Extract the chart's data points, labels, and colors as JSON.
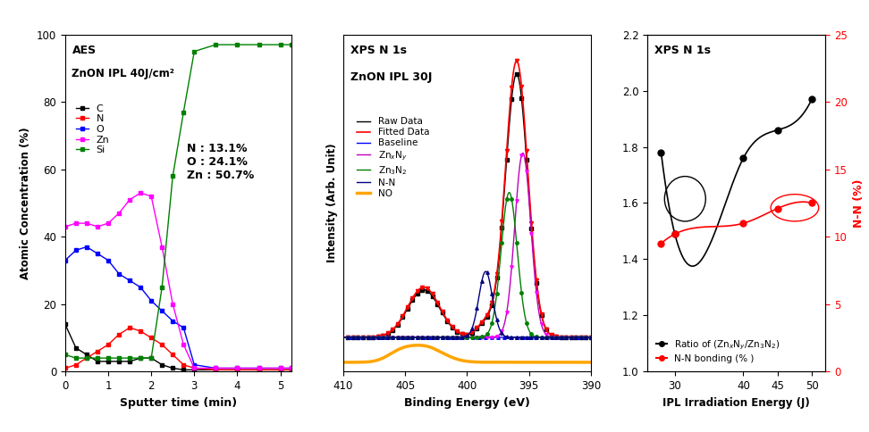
{
  "panel1": {
    "xlabel": "Sputter time (min)",
    "ylabel": "Atomic Concentration (%)",
    "annotation": "N : 13.1%\nO : 24.1%\nZn : 50.7%",
    "inner_title1": "AES",
    "inner_title2": "ZnON IPL 40J/cm²",
    "C": {
      "x": [
        0,
        0.25,
        0.5,
        0.75,
        1.0,
        1.25,
        1.5,
        1.75,
        2.0,
        2.25,
        2.5,
        2.75,
        3.0,
        3.5,
        4.0,
        4.5,
        5.0,
        5.25
      ],
      "y": [
        14,
        7,
        5,
        3,
        3,
        3,
        3,
        4,
        4,
        2,
        1,
        0.5,
        0.5,
        0.5,
        0.5,
        0.5,
        0.5,
        0.5
      ],
      "color": "black",
      "marker": "s"
    },
    "N": {
      "x": [
        0,
        0.25,
        0.5,
        0.75,
        1.0,
        1.25,
        1.5,
        1.75,
        2.0,
        2.25,
        2.5,
        2.75,
        3.0,
        3.5,
        4.0,
        4.5,
        5.0,
        5.25
      ],
      "y": [
        1,
        2,
        4,
        6,
        8,
        11,
        13,
        12,
        10,
        8,
        5,
        2,
        1,
        0.5,
        0.5,
        0.5,
        0.5,
        0.5
      ],
      "color": "red",
      "marker": "s"
    },
    "O": {
      "x": [
        0,
        0.25,
        0.5,
        0.75,
        1.0,
        1.25,
        1.5,
        1.75,
        2.0,
        2.25,
        2.5,
        2.75,
        3.0,
        3.5,
        4.0,
        4.5,
        5.0,
        5.25
      ],
      "y": [
        33,
        36,
        37,
        35,
        33,
        29,
        27,
        25,
        21,
        18,
        15,
        13,
        2,
        1,
        1,
        1,
        1,
        1
      ],
      "color": "blue",
      "marker": "s"
    },
    "Zn": {
      "x": [
        0,
        0.25,
        0.5,
        0.75,
        1.0,
        1.25,
        1.5,
        1.75,
        2.0,
        2.25,
        2.5,
        2.75,
        3.0,
        3.5,
        4.0,
        4.5,
        5.0,
        5.25
      ],
      "y": [
        43,
        44,
        44,
        43,
        44,
        47,
        51,
        53,
        52,
        37,
        20,
        8,
        1,
        1,
        1,
        1,
        1,
        1
      ],
      "color": "magenta",
      "marker": "s"
    },
    "Si": {
      "x": [
        0,
        0.25,
        0.5,
        0.75,
        1.0,
        1.25,
        1.5,
        1.75,
        2.0,
        2.25,
        2.5,
        2.75,
        3.0,
        3.5,
        4.0,
        4.5,
        5.0,
        5.25
      ],
      "y": [
        5,
        4,
        4,
        4,
        4,
        4,
        4,
        4,
        4,
        25,
        58,
        77,
        95,
        97,
        97,
        97,
        97,
        97
      ],
      "color": "green",
      "marker": "s"
    }
  },
  "panel2": {
    "inner_title1": "XPS N 1s",
    "inner_title2": "ZnON IPL 30J",
    "xlabel": "Binding Energy (eV)",
    "ylabel": "Intensity (Arb. Unit)",
    "xlim": [
      410,
      390
    ]
  },
  "panel3": {
    "title": "XPS N 1s",
    "xlabel": "IPL Irradiation Energy (J)",
    "ylabel_right": "N-N (%)",
    "ylim_left": [
      1.0,
      2.2
    ],
    "ylim_right": [
      0,
      25
    ],
    "yticks_left": [
      1.0,
      1.2,
      1.4,
      1.6,
      1.8,
      2.0,
      2.2
    ],
    "yticks_right": [
      0,
      5,
      10,
      15,
      20,
      25
    ],
    "ratio_x": [
      28,
      30,
      40,
      45,
      50
    ],
    "ratio_y": [
      1.78,
      1.49,
      1.76,
      1.86,
      1.97
    ],
    "nn_x": [
      28,
      30,
      40,
      45,
      50
    ],
    "nn_y": [
      9.5,
      10.2,
      11.0,
      12.1,
      12.5
    ],
    "legend_ratio": "Ratio of (Zn$_x$N$_y$/Zn$_3$N$_2$)",
    "legend_nn": "N-N bonding (% )"
  }
}
